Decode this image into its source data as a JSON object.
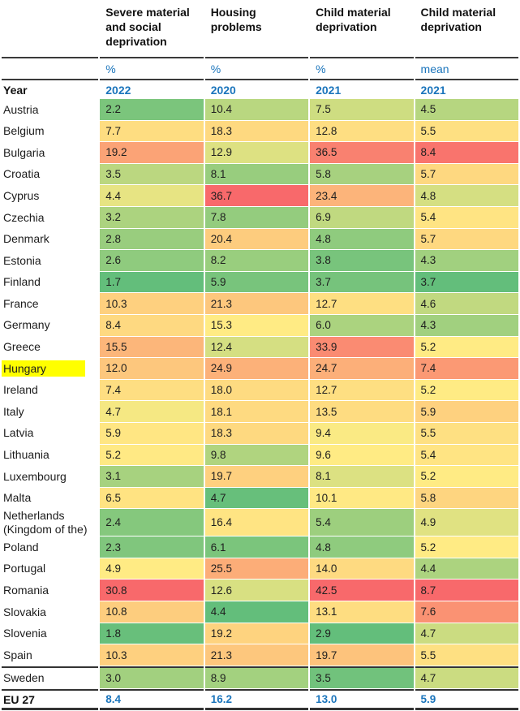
{
  "chart_data": {
    "type": "heatmap",
    "row_header_label": "Year",
    "columns": [
      {
        "label": "Severe material and social deprivation",
        "unit": "%",
        "year": "2022"
      },
      {
        "label": "Housing problems",
        "unit": "%",
        "year": "2020"
      },
      {
        "label": "Child material deprivation",
        "unit": "%",
        "year": "2021"
      },
      {
        "label": "Child material deprivation",
        "unit": "mean",
        "year": "2021"
      }
    ],
    "rows": [
      {
        "label": "Austria",
        "values": [
          "2.2",
          "10.4",
          "7.5",
          "4.5"
        ]
      },
      {
        "label": "Belgium",
        "values": [
          "7.7",
          "18.3",
          "12.8",
          "5.5"
        ]
      },
      {
        "label": "Bulgaria",
        "values": [
          "19.2",
          "12.9",
          "36.5",
          "8.4"
        ]
      },
      {
        "label": "Croatia",
        "values": [
          "3.5",
          "8.1",
          "5.8",
          "5.7"
        ]
      },
      {
        "label": "Cyprus",
        "values": [
          "4.4",
          "36.7",
          "23.4",
          "4.8"
        ]
      },
      {
        "label": "Czechia",
        "values": [
          "3.2",
          "7.8",
          "6.9",
          "5.4"
        ]
      },
      {
        "label": "Denmark",
        "values": [
          "2.8",
          "20.4",
          "4.8",
          "5.7"
        ]
      },
      {
        "label": "Estonia",
        "values": [
          "2.6",
          "8.2",
          "3.8",
          "4.3"
        ]
      },
      {
        "label": "Finland",
        "values": [
          "1.7",
          "5.9",
          "3.7",
          "3.7"
        ]
      },
      {
        "label": "France",
        "values": [
          "10.3",
          "21.3",
          "12.7",
          "4.6"
        ]
      },
      {
        "label": "Germany",
        "values": [
          "8.4",
          "15.3",
          "6.0",
          "4.3"
        ]
      },
      {
        "label": "Greece",
        "values": [
          "15.5",
          "12.4",
          "33.9",
          "5.2"
        ]
      },
      {
        "label": "Hungary",
        "values": [
          "12.0",
          "24.9",
          "24.7",
          "7.4"
        ]
      },
      {
        "label": "Ireland",
        "values": [
          "7.4",
          "18.0",
          "12.7",
          "5.2"
        ]
      },
      {
        "label": "Italy",
        "values": [
          "4.7",
          "18.1",
          "13.5",
          "5.9"
        ]
      },
      {
        "label": "Latvia",
        "values": [
          "5.9",
          "18.3",
          "9.4",
          "5.5"
        ]
      },
      {
        "label": "Lithuania",
        "values": [
          "5.2",
          "9.8",
          "9.6",
          "5.4"
        ]
      },
      {
        "label": "Luxembourg",
        "values": [
          "3.1",
          "19.7",
          "8.1",
          "5.2"
        ]
      },
      {
        "label": "Malta",
        "values": [
          "6.5",
          "4.7",
          "10.1",
          "5.8"
        ]
      },
      {
        "label": "Netherlands (Kingdom of the)",
        "values": [
          "2.4",
          "16.4",
          "5.4",
          "4.9"
        ]
      },
      {
        "label": "Poland",
        "values": [
          "2.3",
          "6.1",
          "4.8",
          "5.2"
        ]
      },
      {
        "label": "Portugal",
        "values": [
          "4.9",
          "25.5",
          "14.0",
          "4.4"
        ]
      },
      {
        "label": "Romania",
        "values": [
          "30.8",
          "12.6",
          "42.5",
          "8.7"
        ]
      },
      {
        "label": "Slovakia",
        "values": [
          "10.8",
          "4.4",
          "13.1",
          "7.6"
        ]
      },
      {
        "label": "Slovenia",
        "values": [
          "1.8",
          "19.2",
          "2.9",
          "4.7"
        ]
      },
      {
        "label": "Spain",
        "values": [
          "10.3",
          "21.3",
          "19.7",
          "5.5"
        ]
      },
      {
        "label": "Sweden",
        "values": [
          "3.0",
          "8.9",
          "3.5",
          "4.7"
        ],
        "separator_above": true
      }
    ],
    "summary_row": {
      "label": "EU 27",
      "values": [
        "8.4",
        "16.2",
        "13.0",
        "5.9"
      ]
    },
    "highlighted_row": "Hungary",
    "color_scale": {
      "type": "3-color",
      "min_color": "#63BE7B",
      "mid_color": "#FFEB84",
      "max_color": "#F8696B",
      "midpoint": "median"
    },
    "colors": {
      "accent_blue": "#1B75BC",
      "rule_dark": "#3A3A3A",
      "highlight_yellow": "#FFFF00",
      "text_dark": "#1F1F1F"
    }
  }
}
